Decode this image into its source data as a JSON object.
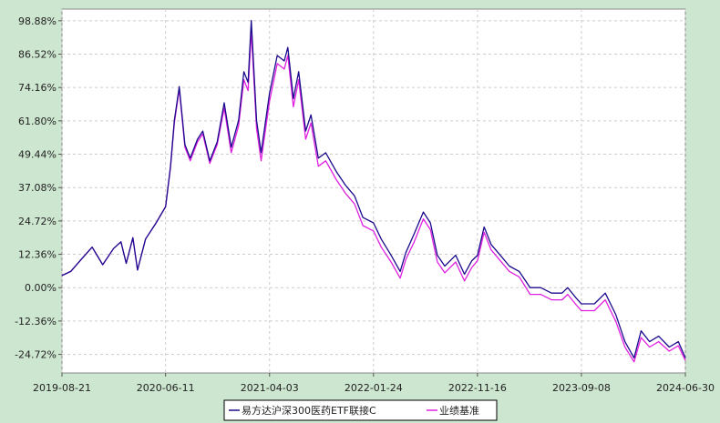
{
  "chart_data": {
    "type": "line",
    "title": "",
    "xlabel": "",
    "ylabel": "",
    "x_tick_labels": [
      "2019-08-21",
      "2020-06-11",
      "2021-04-03",
      "2022-01-24",
      "2022-11-16",
      "2023-09-08",
      "2024-06-30"
    ],
    "y_tick_labels": [
      "98.88%",
      "86.52%",
      "74.16%",
      "61.80%",
      "49.44%",
      "37.08%",
      "24.72%",
      "12.36%",
      "0.00%",
      "-12.36%",
      "-24.72%"
    ],
    "y_ticks": [
      98.88,
      86.52,
      74.16,
      61.8,
      49.44,
      37.08,
      24.72,
      12.36,
      0.0,
      -12.36,
      -24.72
    ],
    "ylim": [
      -31.6,
      103.2
    ],
    "xlim": [
      "2019-08-21",
      "2024-06-30"
    ],
    "grid": true,
    "legend_position": "bottom-center",
    "colors": {
      "background": "#cde6d0",
      "plot_bg": "#ffffff",
      "grid": "#cccccc",
      "fund": "#1a0a8c",
      "benchmark": "#e020e0"
    },
    "series": [
      {
        "name": "易方达沪深300医药ETF联接C",
        "color": "#1a0a8c",
        "x": [
          "2019-08-21",
          "2019-09-15",
          "2019-10-15",
          "2019-11-15",
          "2019-12-15",
          "2020-01-15",
          "2020-02-05",
          "2020-02-20",
          "2020-03-10",
          "2020-03-23",
          "2020-04-15",
          "2020-05-15",
          "2020-06-11",
          "2020-06-25",
          "2020-07-06",
          "2020-07-20",
          "2020-08-05",
          "2020-08-20",
          "2020-09-10",
          "2020-09-25",
          "2020-10-15",
          "2020-11-05",
          "2020-11-25",
          "2020-12-15",
          "2021-01-05",
          "2021-01-20",
          "2021-02-01",
          "2021-02-10",
          "2021-02-25",
          "2021-03-10",
          "2021-04-03",
          "2021-04-25",
          "2021-05-15",
          "2021-05-25",
          "2021-06-10",
          "2021-06-25",
          "2021-07-15",
          "2021-07-30",
          "2021-08-20",
          "2021-09-10",
          "2021-10-10",
          "2021-11-05",
          "2021-12-01",
          "2021-12-25",
          "2022-01-24",
          "2022-02-15",
          "2022-03-15",
          "2022-04-10",
          "2022-04-26",
          "2022-05-20",
          "2022-06-15",
          "2022-07-05",
          "2022-07-25",
          "2022-08-15",
          "2022-09-15",
          "2022-10-10",
          "2022-10-31",
          "2022-11-16",
          "2022-12-05",
          "2022-12-25",
          "2023-01-20",
          "2023-02-15",
          "2023-03-15",
          "2023-04-15",
          "2023-05-15",
          "2023-06-15",
          "2023-07-15",
          "2023-07-31",
          "2023-08-25",
          "2023-09-08",
          "2023-10-15",
          "2023-11-15",
          "2023-12-15",
          "2024-01-10",
          "2024-02-05",
          "2024-02-25",
          "2024-03-20",
          "2024-04-15",
          "2024-05-15",
          "2024-06-10",
          "2024-06-30"
        ],
        "values": [
          4.5,
          6.0,
          10.5,
          15.0,
          8.5,
          14.5,
          17.0,
          9.0,
          18.5,
          6.5,
          18.0,
          24.0,
          30.0,
          45.0,
          62.0,
          74.5,
          53.0,
          48.0,
          55.0,
          58.0,
          47.0,
          54.0,
          68.5,
          52.0,
          62.0,
          80.0,
          76.0,
          99.0,
          62.0,
          50.0,
          72.0,
          86.0,
          84.0,
          89.0,
          70.0,
          80.0,
          58.0,
          64.0,
          48.0,
          50.0,
          43.0,
          38.0,
          34.0,
          26.0,
          24.0,
          18.0,
          12.0,
          6.0,
          13.0,
          20.0,
          28.0,
          24.0,
          12.0,
          8.0,
          12.0,
          5.0,
          10.0,
          12.0,
          22.5,
          16.0,
          12.0,
          8.0,
          6.0,
          0.0,
          0.0,
          -2.0,
          -2.0,
          0.0,
          -4.0,
          -6.0,
          -6.0,
          -2.0,
          -10.0,
          -20.0,
          -26.0,
          -16.0,
          -20.0,
          -18.0,
          -22.0,
          -20.0,
          -26.0
        ]
      },
      {
        "name": "业绩基准",
        "color": "#e020e0",
        "x": [
          "2019-08-21",
          "2019-09-15",
          "2019-10-15",
          "2019-11-15",
          "2019-12-15",
          "2020-01-15",
          "2020-02-05",
          "2020-02-20",
          "2020-03-10",
          "2020-03-23",
          "2020-04-15",
          "2020-05-15",
          "2020-06-11",
          "2020-06-25",
          "2020-07-06",
          "2020-07-20",
          "2020-08-05",
          "2020-08-20",
          "2020-09-10",
          "2020-09-25",
          "2020-10-15",
          "2020-11-05",
          "2020-11-25",
          "2020-12-15",
          "2021-01-05",
          "2021-01-20",
          "2021-02-01",
          "2021-02-10",
          "2021-02-25",
          "2021-03-10",
          "2021-04-03",
          "2021-04-25",
          "2021-05-15",
          "2021-05-25",
          "2021-06-10",
          "2021-06-25",
          "2021-07-15",
          "2021-07-30",
          "2021-08-20",
          "2021-09-10",
          "2021-10-10",
          "2021-11-05",
          "2021-12-01",
          "2021-12-25",
          "2022-01-24",
          "2022-02-15",
          "2022-03-15",
          "2022-04-10",
          "2022-04-26",
          "2022-05-20",
          "2022-06-15",
          "2022-07-05",
          "2022-07-25",
          "2022-08-15",
          "2022-09-15",
          "2022-10-10",
          "2022-10-31",
          "2022-11-16",
          "2022-12-05",
          "2022-12-25",
          "2023-01-20",
          "2023-02-15",
          "2023-03-15",
          "2023-04-15",
          "2023-05-15",
          "2023-06-15",
          "2023-07-15",
          "2023-07-31",
          "2023-08-25",
          "2023-09-08",
          "2023-10-15",
          "2023-11-15",
          "2023-12-15",
          "2024-01-10",
          "2024-02-05",
          "2024-02-25",
          "2024-03-20",
          "2024-04-15",
          "2024-05-15",
          "2024-06-10",
          "2024-06-30"
        ],
        "values": [
          4.5,
          6.0,
          10.5,
          15.0,
          8.5,
          14.5,
          17.0,
          9.0,
          18.5,
          6.5,
          18.0,
          24.0,
          30.0,
          44.5,
          61.0,
          73.5,
          52.0,
          47.0,
          54.0,
          57.0,
          46.0,
          53.0,
          66.5,
          50.0,
          60.0,
          77.0,
          73.0,
          95.0,
          59.0,
          47.0,
          69.0,
          83.0,
          81.0,
          86.0,
          67.0,
          77.0,
          55.0,
          61.0,
          45.0,
          47.0,
          40.0,
          35.0,
          31.0,
          23.0,
          21.0,
          15.0,
          9.5,
          3.5,
          10.5,
          17.0,
          25.5,
          21.5,
          9.5,
          5.5,
          9.5,
          2.5,
          7.5,
          10.0,
          20.5,
          14.0,
          10.0,
          6.0,
          4.0,
          -2.5,
          -2.5,
          -4.5,
          -4.5,
          -2.5,
          -6.5,
          -8.5,
          -8.5,
          -4.5,
          -12.5,
          -22.0,
          -27.5,
          -18.5,
          -22.0,
          -20.0,
          -23.5,
          -21.5,
          -27.0
        ]
      }
    ]
  }
}
